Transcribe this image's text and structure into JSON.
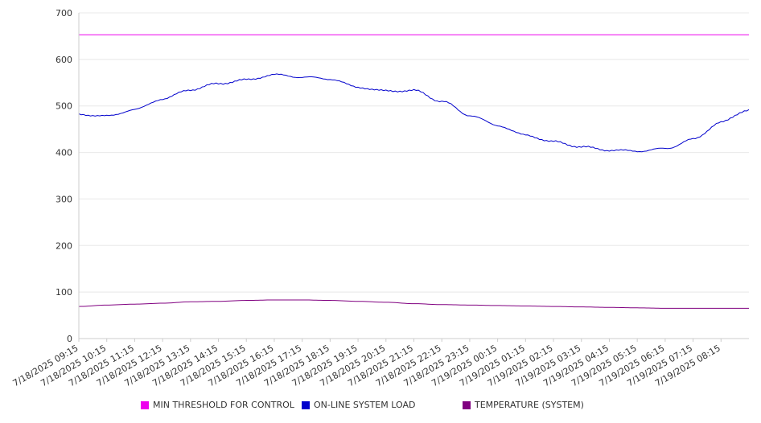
{
  "chart_data": {
    "type": "line",
    "title": "",
    "xlabel": "",
    "ylabel": "",
    "ylim": [
      0,
      700
    ],
    "y_ticks": [
      "0",
      "100",
      "200",
      "300",
      "400",
      "500",
      "600",
      "700"
    ],
    "x_tick_labels": [
      "7/18/2025 09:15",
      "7/18/2025 10:15",
      "7/18/2025 11:15",
      "7/18/2025 12:15",
      "7/18/2025 13:15",
      "7/18/2025 14:15",
      "7/18/2025 15:15",
      "7/18/2025 16:15",
      "7/18/2025 17:15",
      "7/18/2025 18:15",
      "7/18/2025 19:15",
      "7/18/2025 20:15",
      "7/18/2025 21:15",
      "7/18/2025 22:15",
      "7/18/2025 23:15",
      "7/19/2025 00:15",
      "7/19/2025 01:15",
      "7/19/2025 02:15",
      "7/19/2025 03:15",
      "7/19/2025 04:15",
      "7/19/2025 05:15",
      "7/19/2025 06:15",
      "7/19/2025 07:15",
      "7/19/2025 08:15"
    ],
    "x": [
      "7/18/2025 09:15",
      "7/18/2025 10:15",
      "7/18/2025 11:15",
      "7/18/2025 12:15",
      "7/18/2025 13:15",
      "7/18/2025 14:15",
      "7/18/2025 15:15",
      "7/18/2025 16:15",
      "7/18/2025 17:15",
      "7/18/2025 18:15",
      "7/18/2025 19:15",
      "7/18/2025 20:15",
      "7/18/2025 21:15",
      "7/18/2025 22:15",
      "7/18/2025 23:15",
      "7/19/2025 00:15",
      "7/19/2025 01:15",
      "7/19/2025 02:15",
      "7/19/2025 03:15",
      "7/19/2025 04:15",
      "7/19/2025 05:15",
      "7/19/2025 06:15",
      "7/19/2025 07:15",
      "7/19/2025 08:15",
      "7/19/2025 09:15"
    ],
    "grid": true,
    "legend_position": "bottom",
    "series": [
      {
        "name": "MIN THRESHOLD FOR CONTROL",
        "color": "#ee00ee",
        "values": [
          653,
          653,
          653,
          653,
          653,
          653,
          653,
          653,
          653,
          653,
          653,
          653,
          653,
          653,
          653,
          653,
          653,
          653,
          653,
          653,
          653,
          653,
          653,
          653,
          653
        ]
      },
      {
        "name": "ON-LINE SYSTEM LOAD",
        "color": "#0000cc",
        "values": [
          482,
          478,
          492,
          515,
          535,
          548,
          556,
          567,
          562,
          558,
          540,
          532,
          533,
          510,
          480,
          458,
          437,
          423,
          412,
          405,
          403,
          408,
          428,
          465,
          492
        ]
      },
      {
        "name": "TEMPERATURE (SYSTEM)",
        "color": "#800080",
        "values": [
          69,
          72,
          74,
          76,
          79,
          80,
          82,
          83,
          83,
          82,
          80,
          78,
          75,
          73,
          72,
          71,
          70,
          69,
          68,
          67,
          66,
          65,
          65,
          65,
          65
        ]
      }
    ]
  }
}
